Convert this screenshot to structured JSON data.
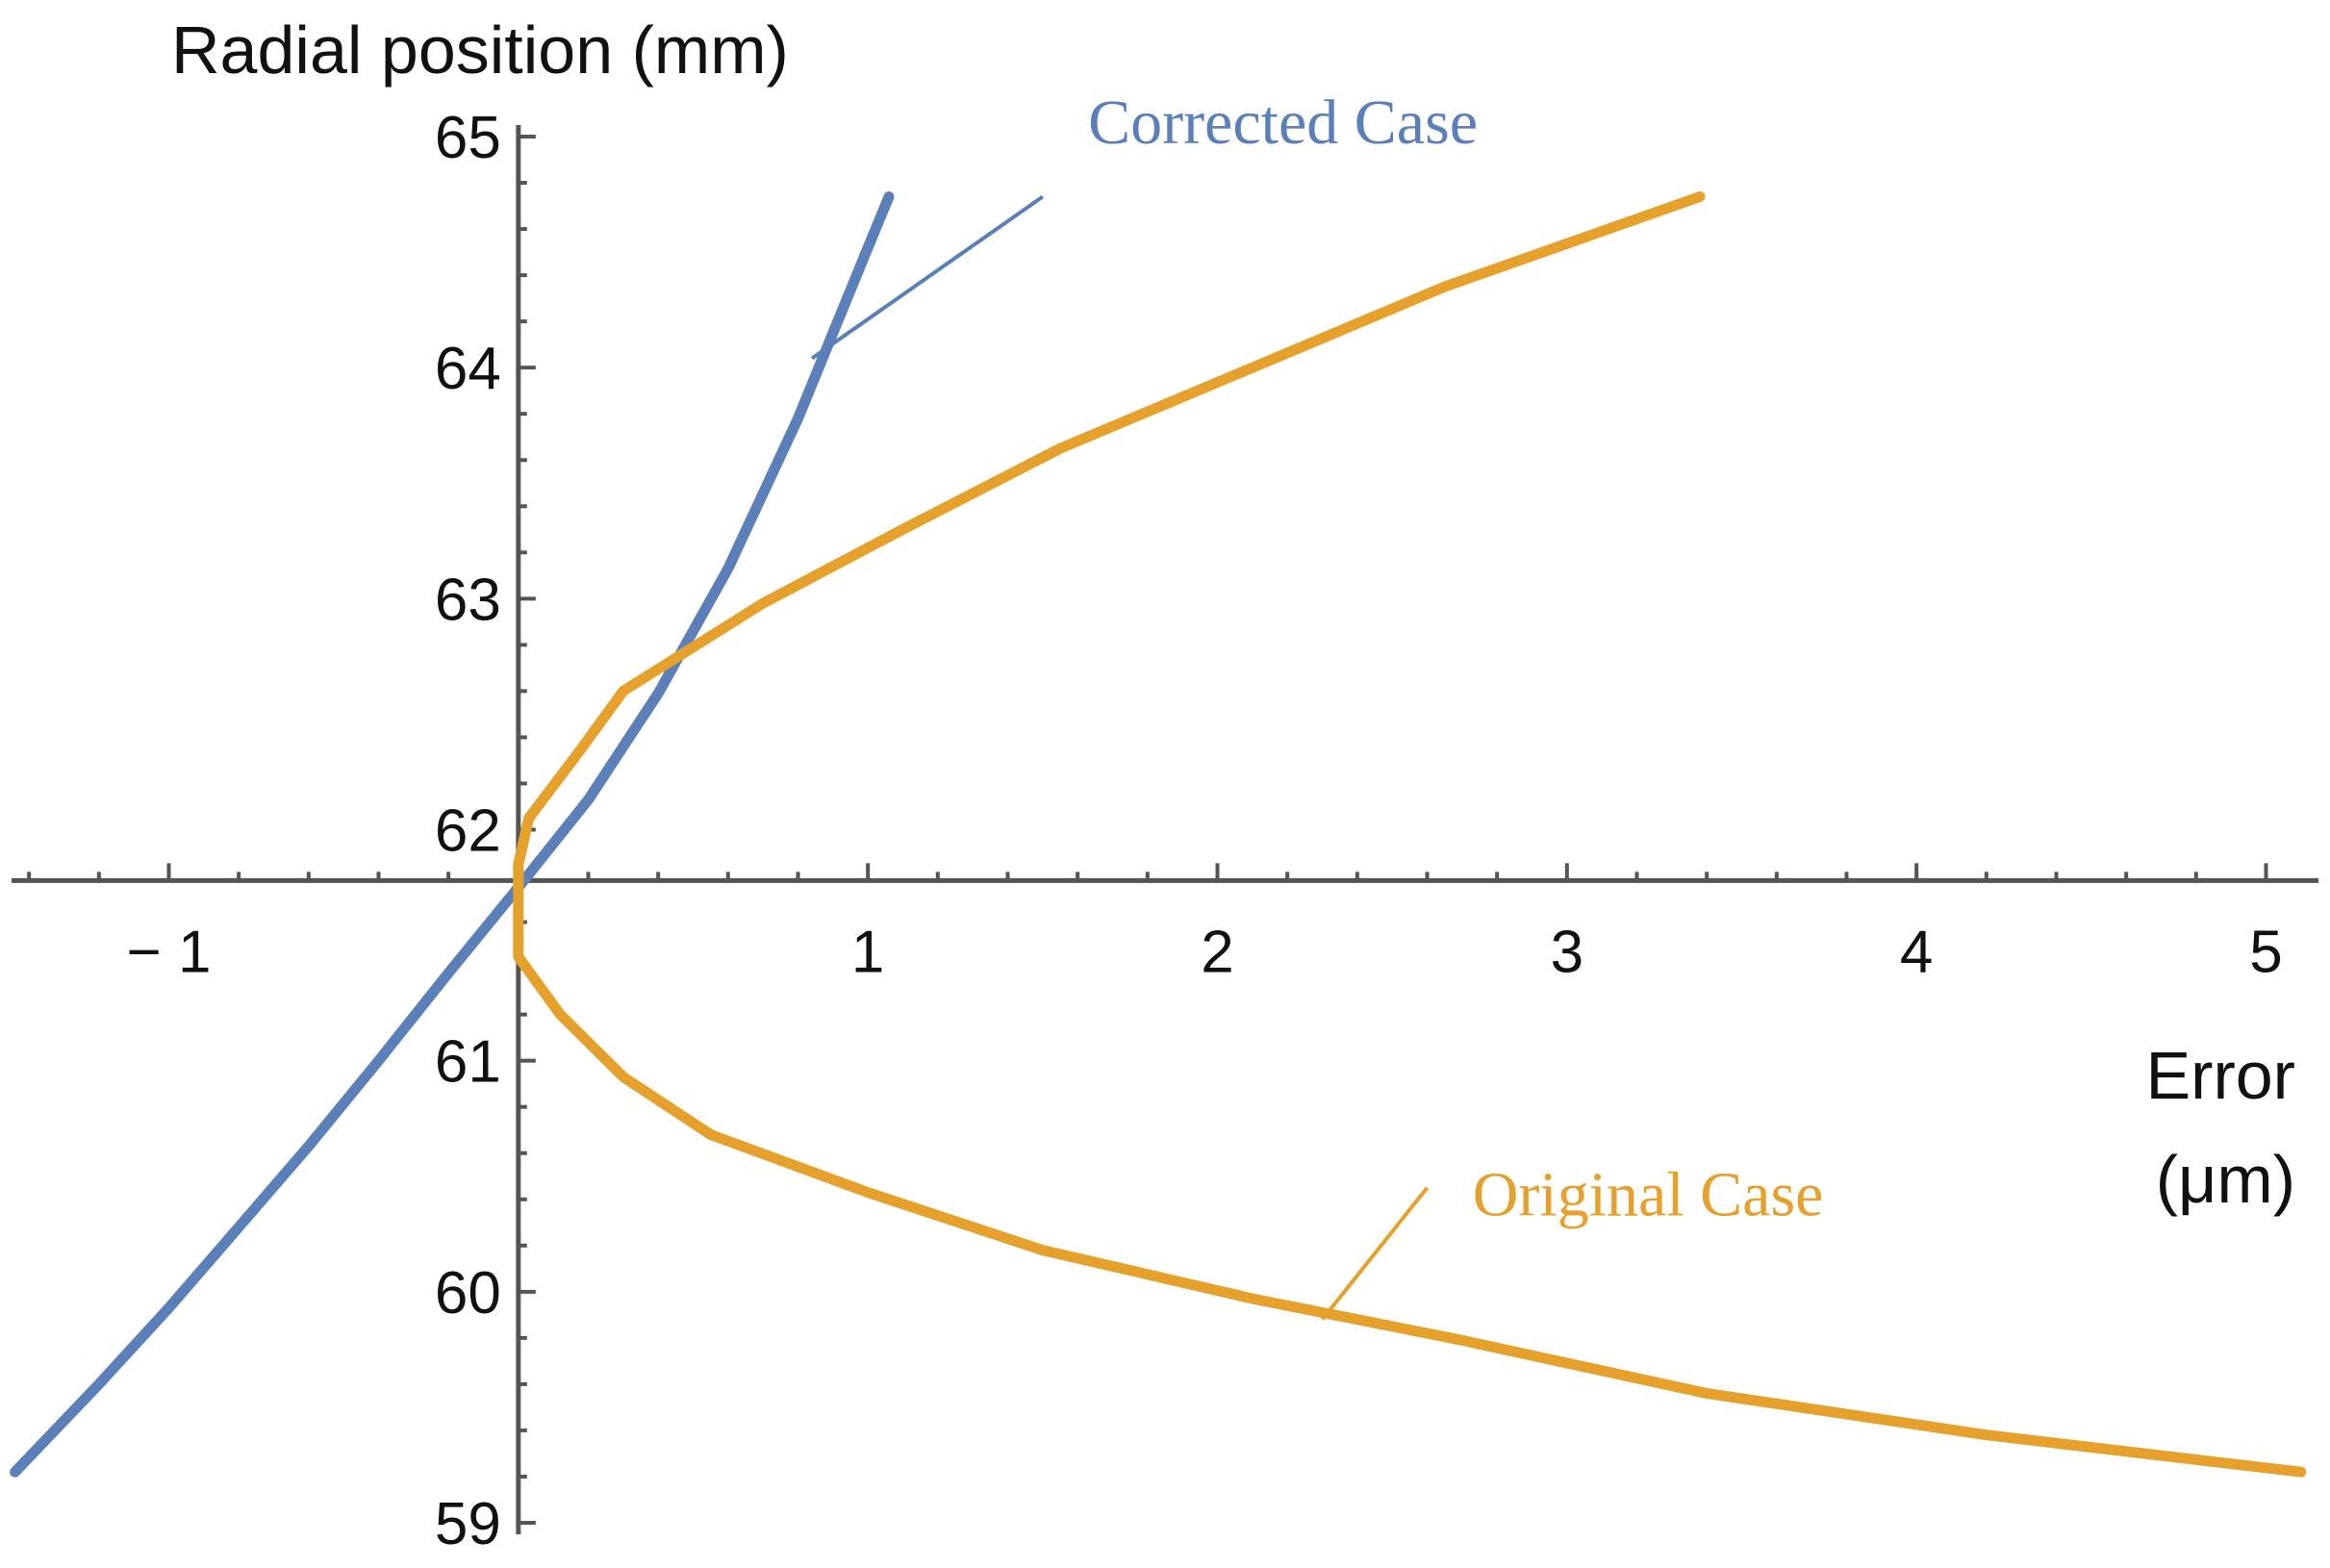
{
  "chart_data": {
    "type": "line",
    "xlabel": "Error",
    "xlabel_unit": "(μm)",
    "ylabel": "Radial position (mm)",
    "xlim": [
      -1.45,
      5.15
    ],
    "ylim": [
      58.95,
      65.05
    ],
    "x_ticks": [
      -1,
      1,
      2,
      3,
      4,
      5
    ],
    "x_tick_labels": [
      "− 1",
      "1",
      "2",
      "3",
      "4",
      "5"
    ],
    "y_ticks": [
      59,
      60,
      61,
      62,
      63,
      64,
      65
    ],
    "y_tick_labels": [
      "59",
      "60",
      "61",
      "62",
      "63",
      "64",
      "65"
    ],
    "axes_origin": [
      0,
      61.78
    ],
    "grid": false,
    "colors": {
      "corrected": "#5b80b9",
      "original": "#e5a12c",
      "axis": "#555555"
    },
    "series": [
      {
        "name": "Corrected Case",
        "color": "#5b80b9",
        "points": [
          [
            -1.44,
            59.22
          ],
          [
            -1.2,
            59.6
          ],
          [
            -1.0,
            59.93
          ],
          [
            -0.8,
            60.28
          ],
          [
            -0.6,
            60.63
          ],
          [
            -0.4,
            61.0
          ],
          [
            -0.2,
            61.38
          ],
          [
            0.0,
            61.75
          ],
          [
            0.2,
            62.13
          ],
          [
            0.4,
            62.59
          ],
          [
            0.6,
            63.13
          ],
          [
            0.8,
            63.78
          ],
          [
            1.0,
            64.52
          ],
          [
            1.06,
            64.74
          ]
        ]
      },
      {
        "name": "Original Case",
        "color": "#e5a12c",
        "points": [
          [
            3.38,
            64.74
          ],
          [
            2.65,
            64.35
          ],
          [
            2.1,
            64.0
          ],
          [
            1.55,
            63.65
          ],
          [
            1.1,
            63.3
          ],
          [
            0.7,
            62.98
          ],
          [
            0.3,
            62.6
          ],
          [
            0.18,
            62.35
          ],
          [
            0.03,
            62.05
          ],
          [
            0.0,
            61.85
          ],
          [
            0.0,
            61.45
          ],
          [
            0.12,
            61.2
          ],
          [
            0.3,
            60.93
          ],
          [
            0.55,
            60.68
          ],
          [
            1.0,
            60.43
          ],
          [
            1.5,
            60.18
          ],
          [
            2.1,
            59.97
          ],
          [
            2.7,
            59.79
          ],
          [
            3.4,
            59.56
          ],
          [
            4.2,
            59.38
          ],
          [
            5.1,
            59.22
          ]
        ]
      }
    ],
    "annotations": [
      {
        "text": "Corrected Case",
        "series": "Corrected Case",
        "text_at": [
          1.63,
          64.97
        ],
        "leader_from": [
          1.5,
          64.74
        ],
        "leader_to": [
          0.84,
          64.04
        ]
      },
      {
        "text": "Original Case",
        "series": "Original Case",
        "text_at": [
          2.73,
          60.33
        ],
        "leader_from": [
          2.6,
          60.45
        ],
        "leader_to": [
          2.3,
          59.88
        ]
      }
    ]
  }
}
